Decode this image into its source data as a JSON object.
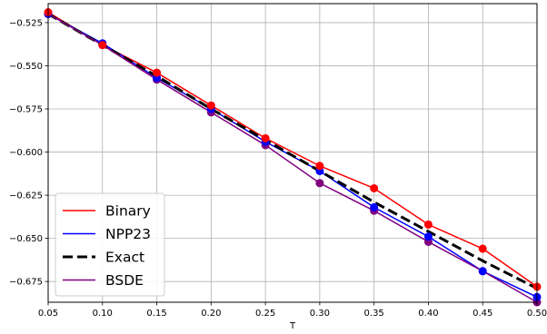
{
  "chart_data": {
    "type": "line",
    "title": "",
    "xlabel": "T",
    "ylabel": "",
    "xlim": [
      0.05,
      0.5
    ],
    "ylim": [
      -0.687,
      -0.514
    ],
    "grid": true,
    "legend_position": "lower-left",
    "x": [
      0.05,
      0.1,
      0.15,
      0.2,
      0.25,
      0.3,
      0.35,
      0.4,
      0.45,
      0.5
    ],
    "x_ticks": [
      "0.05",
      "0.10",
      "0.15",
      "0.20",
      "0.25",
      "0.30",
      "0.35",
      "0.40",
      "0.45",
      "0.50"
    ],
    "x_tick_values": [
      0.05,
      0.1,
      0.15,
      0.2,
      0.25,
      0.3,
      0.35,
      0.4,
      0.45,
      0.5
    ],
    "y_ticks": [
      "−0.525",
      "−0.550",
      "−0.575",
      "−0.600",
      "−0.625",
      "−0.650",
      "−0.675"
    ],
    "y_tick_values": [
      -0.525,
      -0.55,
      -0.575,
      -0.6,
      -0.625,
      -0.65,
      -0.675
    ],
    "series": [
      {
        "name": "Binary",
        "color": "#ff0000",
        "style": "solid",
        "markers": true,
        "values": [
          -0.519,
          -0.538,
          -0.554,
          -0.573,
          -0.592,
          -0.608,
          -0.621,
          -0.642,
          -0.656,
          -0.678
        ]
      },
      {
        "name": "NPP23",
        "color": "#0000ff",
        "style": "solid",
        "markers": true,
        "values": [
          -0.52,
          -0.537,
          -0.557,
          -0.575,
          -0.594,
          -0.611,
          -0.632,
          -0.649,
          -0.669,
          -0.684
        ]
      },
      {
        "name": "Exact",
        "color": "#000000",
        "style": "dashed",
        "markers": false,
        "values": [
          -0.52,
          -0.538,
          -0.556,
          -0.575,
          -0.593,
          -0.611,
          -0.629,
          -0.646,
          -0.663,
          -0.679
        ]
      },
      {
        "name": "BSDE",
        "color": "#800080",
        "style": "solid",
        "markers": true,
        "values": [
          -0.52,
          -0.538,
          -0.558,
          -0.577,
          -0.596,
          -0.618,
          -0.634,
          -0.652,
          -0.669,
          -0.687
        ]
      }
    ],
    "marker_order": [
      "BSDE",
      "NPP23",
      "Binary"
    ]
  }
}
